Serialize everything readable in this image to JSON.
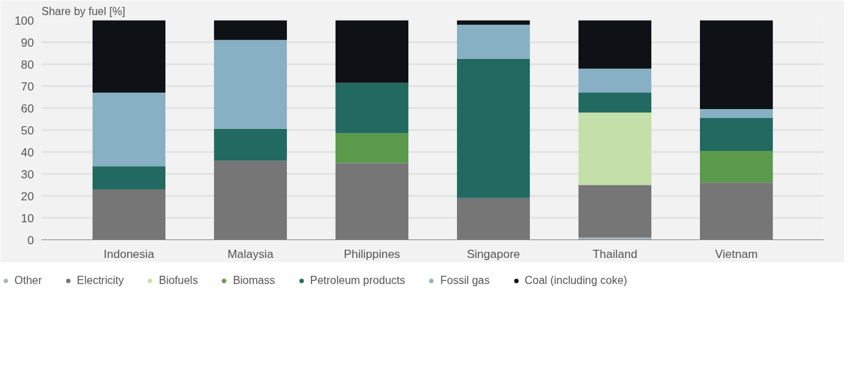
{
  "chart_data": {
    "type": "bar",
    "stacked": true,
    "ylabel": "Share by fuel  [%]",
    "categories": [
      "Indonesia",
      "Malaysia",
      "Philippines",
      "Singapore",
      "Thailand",
      "Vietnam"
    ],
    "series": [
      {
        "name": "Other",
        "color": "#a7b4bf",
        "values": [
          0,
          0,
          0,
          0,
          1,
          0
        ]
      },
      {
        "name": "Electricity",
        "color": "#767676",
        "values": [
          23,
          36,
          35,
          19,
          24,
          26
        ]
      },
      {
        "name": "Biofuels",
        "color": "#c4dfa8",
        "values": [
          0,
          0,
          0,
          0,
          33,
          0
        ]
      },
      {
        "name": "Biomass",
        "color": "#5a9a4a",
        "values": [
          0,
          0,
          13.5,
          0,
          0,
          14.5
        ]
      },
      {
        "name": "Petroleum products",
        "color": "#226a61",
        "values": [
          10.5,
          14.5,
          23,
          63.5,
          9,
          15
        ]
      },
      {
        "name": "Fossil gas",
        "color": "#88b0c4",
        "values": [
          33.5,
          40.5,
          0,
          15.5,
          11,
          4
        ]
      },
      {
        "name": "Coal (including coke)",
        "color": "#0e1116",
        "values": [
          33,
          9,
          28.5,
          2,
          22,
          40.5
        ]
      }
    ],
    "ylim": [
      0,
      100
    ],
    "yticks": [
      0,
      10,
      20,
      30,
      40,
      50,
      60,
      70,
      80,
      90,
      100
    ],
    "grid": "y",
    "legend": "bottom"
  }
}
